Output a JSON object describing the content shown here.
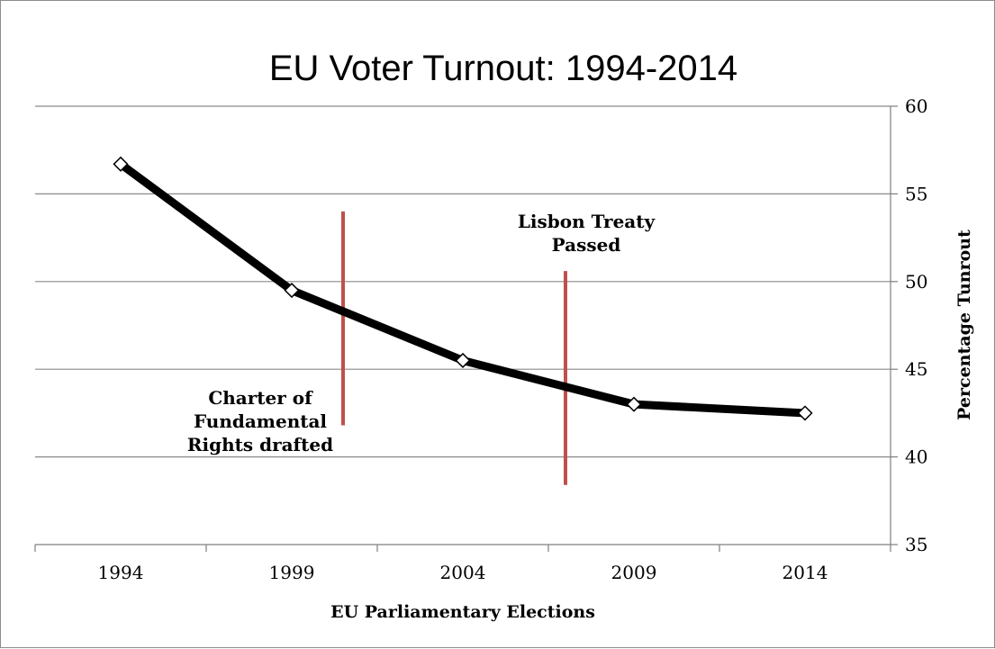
{
  "chart_data": {
    "type": "line",
    "title": "EU Voter Turnout: 1994-2014",
    "xlabel": "EU Parliamentary Elections",
    "ylabel": "Percentage Tunrout",
    "categories": [
      "1994",
      "1999",
      "2004",
      "2009",
      "2014"
    ],
    "series": [
      {
        "values": [
          56.7,
          49.5,
          45.5,
          43.0,
          42.5
        ],
        "color": "#000000"
      }
    ],
    "ylim": [
      35,
      60
    ],
    "yticks": [
      35,
      40,
      45,
      50,
      55,
      60
    ],
    "y_axis_side": "right",
    "grid": true,
    "legend": "none",
    "annotations": [
      {
        "text": [
          "Charter of",
          "Fundamental",
          "Rights drafted"
        ],
        "x": 2000.5,
        "y_from": 41.8,
        "y_to": 54.0,
        "color": "#c0504d"
      },
      {
        "text": [
          "Lisbon Treaty",
          "Passed"
        ],
        "x": 2007.0,
        "y_from": 38.4,
        "y_to": 50.6,
        "color": "#c0504d"
      }
    ]
  }
}
